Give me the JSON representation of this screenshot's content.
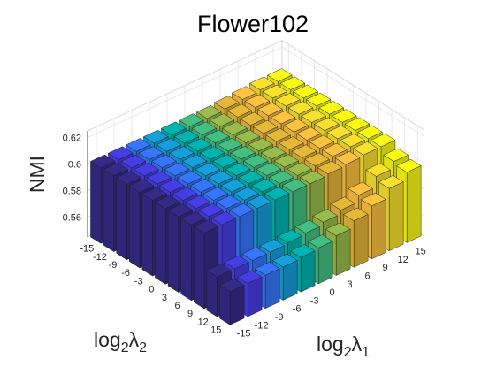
{
  "chart_data": {
    "type": "bar3d",
    "title": "Flower102",
    "zlabel": "NMI",
    "xlabel": {
      "base": "log",
      "sub1": "2",
      "symbol": "λ",
      "sub2": "1"
    },
    "ylabel": {
      "base": "log",
      "sub1": "2",
      "symbol": "λ",
      "sub2": "2"
    },
    "x_ticks": [
      "-15",
      "-12",
      "-9",
      "-6",
      "-3",
      "0",
      "3",
      "6",
      "9",
      "12",
      "15"
    ],
    "y_ticks": [
      "-15",
      "-12",
      "-9",
      "-6",
      "-3",
      "0",
      "3",
      "6",
      "9",
      "12",
      "15"
    ],
    "z_ticks": [
      "0.56",
      "0.58",
      "0.6",
      "0.62"
    ],
    "z_tick_values": [
      0.56,
      0.58,
      0.6,
      0.62
    ],
    "zlim": [
      0.545,
      0.625
    ],
    "grid": true,
    "colormap": "parula, by log2(λ1)",
    "values": [
      [
        0.602,
        0.602,
        0.602,
        0.602,
        0.602,
        0.602,
        0.602,
        0.603,
        0.604,
        0.605,
        0.605
      ],
      [
        0.602,
        0.602,
        0.602,
        0.602,
        0.602,
        0.602,
        0.602,
        0.603,
        0.604,
        0.605,
        0.605
      ],
      [
        0.602,
        0.602,
        0.602,
        0.602,
        0.602,
        0.602,
        0.602,
        0.603,
        0.604,
        0.605,
        0.605
      ],
      [
        0.602,
        0.602,
        0.602,
        0.602,
        0.602,
        0.602,
        0.602,
        0.603,
        0.604,
        0.605,
        0.605
      ],
      [
        0.602,
        0.602,
        0.602,
        0.602,
        0.602,
        0.602,
        0.602,
        0.603,
        0.604,
        0.605,
        0.605
      ],
      [
        0.602,
        0.602,
        0.602,
        0.602,
        0.602,
        0.602,
        0.602,
        0.603,
        0.604,
        0.605,
        0.605
      ],
      [
        0.602,
        0.602,
        0.602,
        0.602,
        0.602,
        0.602,
        0.602,
        0.603,
        0.604,
        0.605,
        0.605
      ],
      [
        0.602,
        0.602,
        0.602,
        0.602,
        0.602,
        0.602,
        0.602,
        0.603,
        0.604,
        0.605,
        0.605
      ],
      [
        0.602,
        0.602,
        0.602,
        0.602,
        0.602,
        0.602,
        0.602,
        0.603,
        0.604,
        0.605,
        0.605
      ],
      [
        0.575,
        0.575,
        0.575,
        0.575,
        0.576,
        0.577,
        0.579,
        0.582,
        0.587,
        0.595,
        0.6
      ],
      [
        0.57,
        0.57,
        0.57,
        0.57,
        0.571,
        0.572,
        0.575,
        0.58,
        0.585,
        0.592,
        0.598
      ]
    ]
  }
}
